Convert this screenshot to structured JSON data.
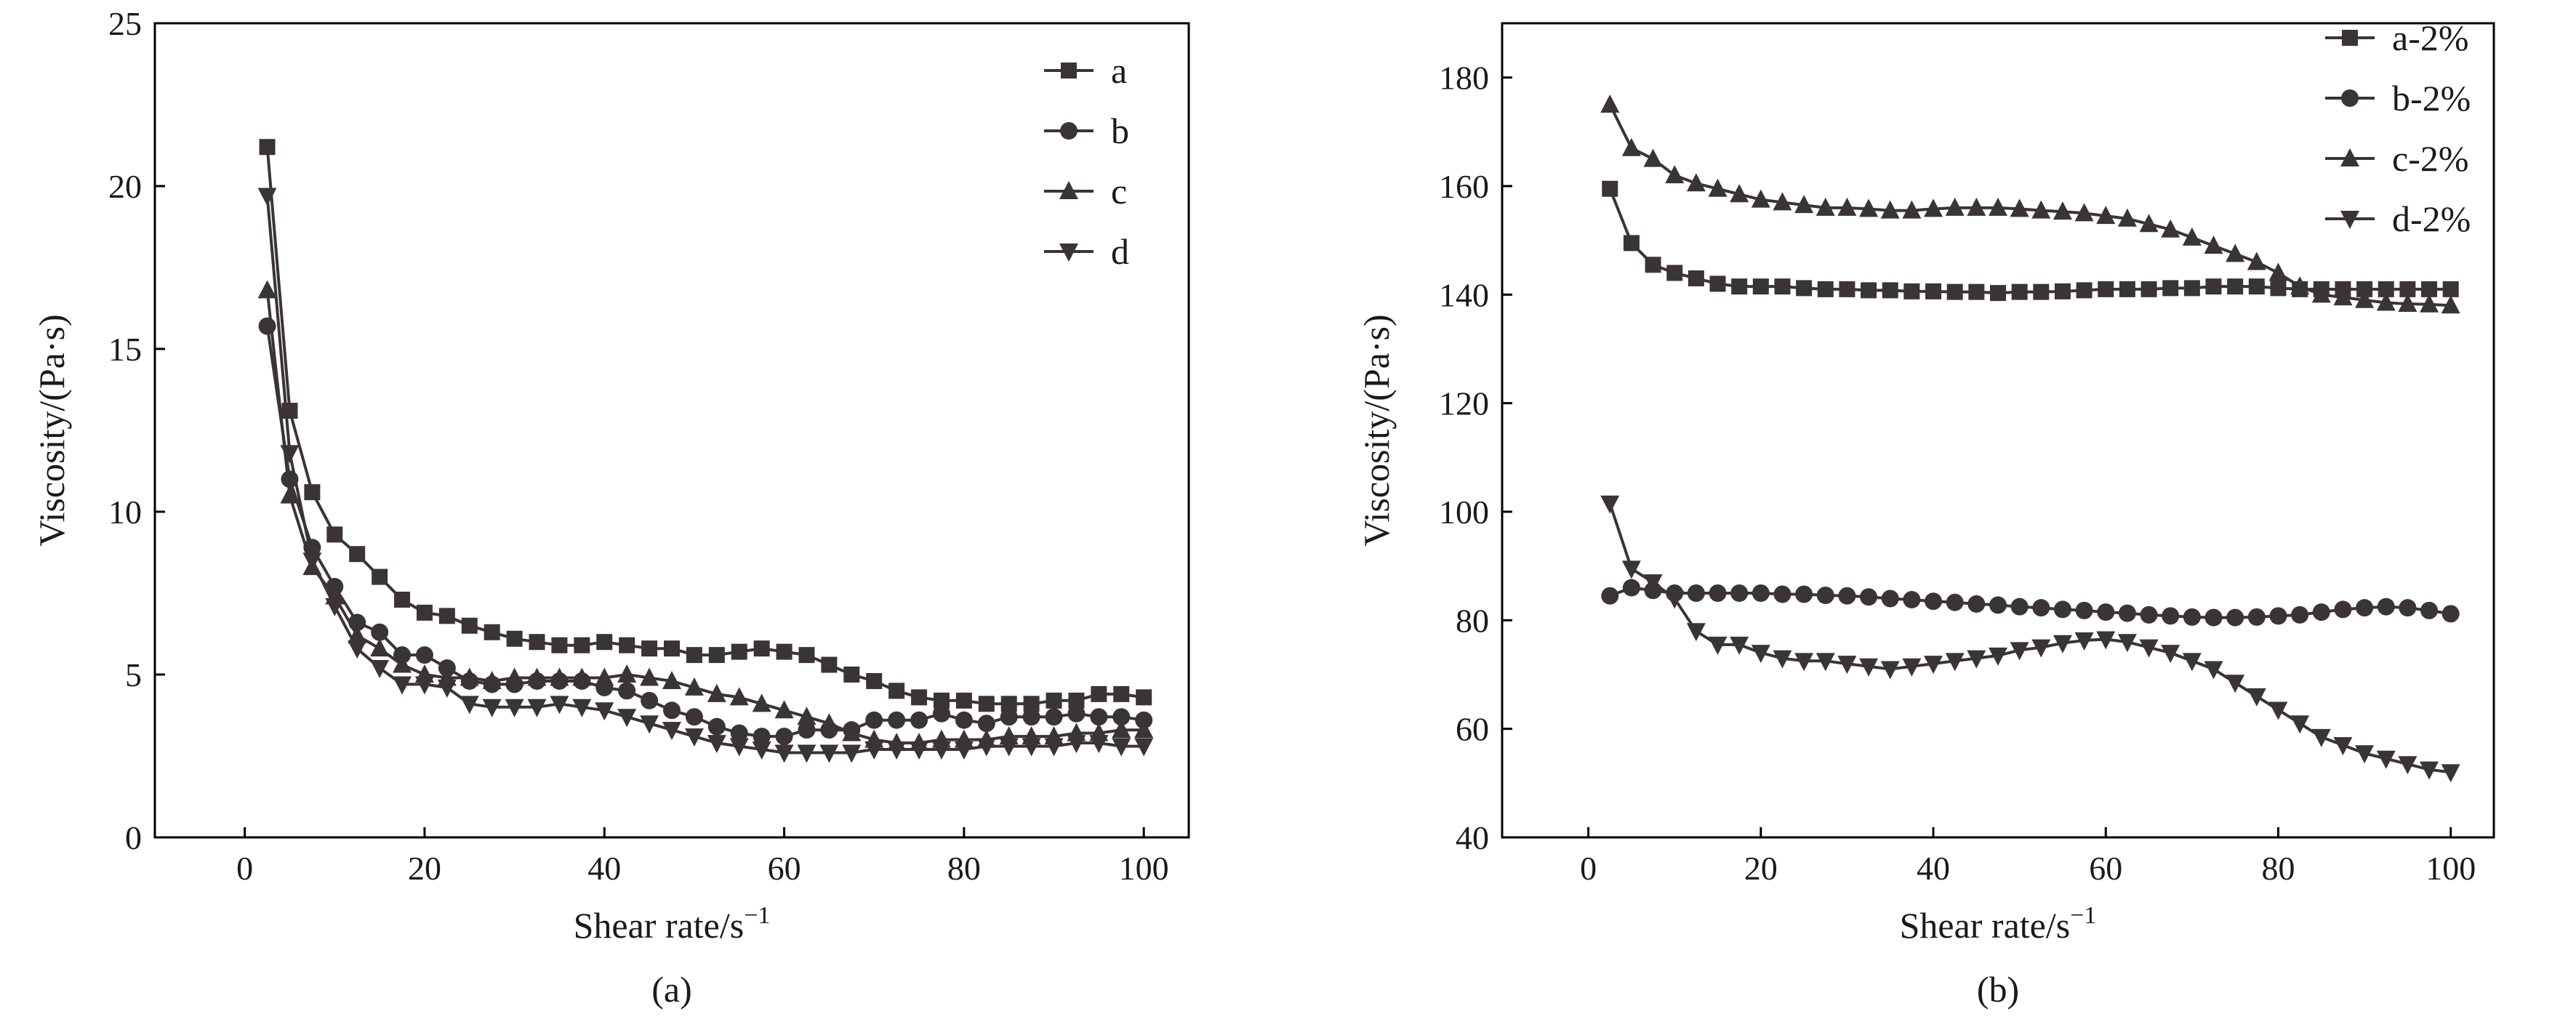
{
  "chart_data": [
    {
      "type": "line",
      "panel_label": "(a)",
      "title": "",
      "xlabel": "Shear rate/s",
      "xlabel_sup": "−1",
      "ylabel": "Viscosity/(Pa·s)",
      "xlim": [
        -10,
        105
      ],
      "ylim": [
        0,
        25
      ],
      "xticks": [
        0,
        20,
        40,
        60,
        80,
        100
      ],
      "yticks": [
        0,
        5,
        10,
        15,
        20,
        25
      ],
      "legend_position": "top-right",
      "color": "#3b3434",
      "series": [
        {
          "name": "a",
          "marker": "square",
          "x": [
            2.5,
            5,
            7.5,
            10,
            12.5,
            15,
            17.5,
            20,
            22.5,
            25,
            27.5,
            30,
            32.5,
            35,
            37.5,
            40,
            42.5,
            45,
            47.5,
            50,
            52.5,
            55,
            57.5,
            60,
            62.5,
            65,
            67.5,
            70,
            72.5,
            75,
            77.5,
            80,
            82.5,
            85,
            87.5,
            90,
            92.5,
            95,
            97.5,
            100
          ],
          "y": [
            21.2,
            13.1,
            10.6,
            9.3,
            8.7,
            8.0,
            7.3,
            6.9,
            6.8,
            6.5,
            6.3,
            6.1,
            6.0,
            5.9,
            5.9,
            6.0,
            5.9,
            5.8,
            5.8,
            5.6,
            5.6,
            5.7,
            5.8,
            5.7,
            5.6,
            5.3,
            5.0,
            4.8,
            4.5,
            4.3,
            4.2,
            4.2,
            4.1,
            4.1,
            4.1,
            4.2,
            4.2,
            4.4,
            4.4,
            4.3
          ]
        },
        {
          "name": "b",
          "marker": "circle",
          "x": [
            2.5,
            5,
            7.5,
            10,
            12.5,
            15,
            17.5,
            20,
            22.5,
            25,
            27.5,
            30,
            32.5,
            35,
            37.5,
            40,
            42.5,
            45,
            47.5,
            50,
            52.5,
            55,
            57.5,
            60,
            62.5,
            65,
            67.5,
            70,
            72.5,
            75,
            77.5,
            80,
            82.5,
            85,
            87.5,
            90,
            92.5,
            95,
            97.5,
            100
          ],
          "y": [
            15.7,
            11.0,
            8.9,
            7.7,
            6.6,
            6.3,
            5.6,
            5.6,
            5.2,
            4.8,
            4.7,
            4.7,
            4.8,
            4.8,
            4.8,
            4.6,
            4.5,
            4.2,
            3.9,
            3.7,
            3.4,
            3.2,
            3.1,
            3.1,
            3.3,
            3.3,
            3.3,
            3.6,
            3.6,
            3.6,
            3.8,
            3.6,
            3.5,
            3.7,
            3.7,
            3.7,
            3.8,
            3.7,
            3.7,
            3.6
          ]
        },
        {
          "name": "c",
          "marker": "triangle-up",
          "x": [
            2.5,
            5,
            7.5,
            10,
            12.5,
            15,
            17.5,
            20,
            22.5,
            25,
            27.5,
            30,
            32.5,
            35,
            37.5,
            40,
            42.5,
            45,
            47.5,
            50,
            52.5,
            55,
            57.5,
            60,
            62.5,
            65,
            67.5,
            70,
            72.5,
            75,
            77.5,
            80,
            82.5,
            85,
            87.5,
            90,
            92.5,
            95,
            97.5,
            100
          ],
          "y": [
            16.8,
            10.5,
            8.3,
            7.4,
            6.2,
            5.8,
            5.3,
            5.0,
            4.9,
            4.9,
            4.8,
            4.9,
            4.9,
            4.9,
            4.9,
            4.9,
            5.0,
            4.9,
            4.8,
            4.6,
            4.4,
            4.3,
            4.1,
            3.9,
            3.7,
            3.5,
            3.2,
            3.0,
            2.9,
            2.9,
            3.0,
            3.0,
            3.0,
            3.1,
            3.1,
            3.1,
            3.2,
            3.2,
            3.3,
            3.3
          ]
        },
        {
          "name": "d",
          "marker": "triangle-down",
          "x": [
            2.5,
            5,
            7.5,
            10,
            12.5,
            15,
            17.5,
            20,
            22.5,
            25,
            27.5,
            30,
            32.5,
            35,
            37.5,
            40,
            42.5,
            45,
            47.5,
            50,
            52.5,
            55,
            57.5,
            60,
            62.5,
            65,
            67.5,
            70,
            72.5,
            75,
            77.5,
            80,
            82.5,
            85,
            87.5,
            90,
            92.5,
            95,
            97.5,
            100
          ],
          "y": [
            19.7,
            11.8,
            8.5,
            7.1,
            5.8,
            5.2,
            4.7,
            4.7,
            4.6,
            4.1,
            4.0,
            4.0,
            4.0,
            4.1,
            4.0,
            3.9,
            3.7,
            3.5,
            3.3,
            3.1,
            2.9,
            2.8,
            2.7,
            2.6,
            2.6,
            2.6,
            2.6,
            2.7,
            2.7,
            2.7,
            2.7,
            2.7,
            2.8,
            2.8,
            2.8,
            2.8,
            2.9,
            2.9,
            2.8,
            2.8
          ]
        }
      ]
    },
    {
      "type": "line",
      "panel_label": "(b)",
      "title": "",
      "xlabel": "Shear rate/s",
      "xlabel_sup": "−1",
      "ylabel": "Viscosity/(Pa·s)",
      "xlim": [
        -10,
        105
      ],
      "ylim": [
        40,
        190
      ],
      "xticks": [
        0,
        20,
        40,
        60,
        80,
        100
      ],
      "yticks": [
        40,
        60,
        80,
        100,
        120,
        140,
        160,
        180
      ],
      "legend_position": "top-right",
      "color": "#3b3434",
      "series": [
        {
          "name": "a-2%",
          "marker": "square",
          "x": [
            2.5,
            5,
            7.5,
            10,
            12.5,
            15,
            17.5,
            20,
            22.5,
            25,
            27.5,
            30,
            32.5,
            35,
            37.5,
            40,
            42.5,
            45,
            47.5,
            50,
            52.5,
            55,
            57.5,
            60,
            62.5,
            65,
            67.5,
            70,
            72.5,
            75,
            77.5,
            80,
            82.5,
            85,
            87.5,
            90,
            92.5,
            95,
            97.5,
            100
          ],
          "y": [
            159.5,
            149.5,
            145.5,
            144,
            143,
            142,
            141.5,
            141.5,
            141.5,
            141.2,
            141,
            141,
            140.8,
            140.8,
            140.6,
            140.6,
            140.5,
            140.5,
            140.3,
            140.5,
            140.5,
            140.6,
            140.8,
            141,
            141,
            141,
            141.2,
            141.2,
            141.5,
            141.5,
            141.5,
            141.2,
            141,
            141,
            141,
            141,
            141,
            141,
            141,
            141
          ]
        },
        {
          "name": "b-2%",
          "marker": "circle",
          "x": [
            2.5,
            5,
            7.5,
            10,
            12.5,
            15,
            17.5,
            20,
            22.5,
            25,
            27.5,
            30,
            32.5,
            35,
            37.5,
            40,
            42.5,
            45,
            47.5,
            50,
            52.5,
            55,
            57.5,
            60,
            62.5,
            65,
            67.5,
            70,
            72.5,
            75,
            77.5,
            80,
            82.5,
            85,
            87.5,
            90,
            92.5,
            95,
            97.5,
            100
          ],
          "y": [
            84.5,
            86,
            85.5,
            85,
            85,
            85,
            85,
            85,
            84.8,
            84.8,
            84.6,
            84.5,
            84.3,
            84,
            83.8,
            83.5,
            83.3,
            83,
            82.8,
            82.5,
            82.3,
            82,
            81.8,
            81.5,
            81.3,
            81,
            80.8,
            80.6,
            80.5,
            80.5,
            80.6,
            80.8,
            81,
            81.5,
            82,
            82.3,
            82.5,
            82.3,
            81.8,
            81.2
          ]
        },
        {
          "name": "c-2%",
          "marker": "triangle-up",
          "x": [
            2.5,
            5,
            7.5,
            10,
            12.5,
            15,
            17.5,
            20,
            22.5,
            25,
            27.5,
            30,
            32.5,
            35,
            37.5,
            40,
            42.5,
            45,
            47.5,
            50,
            52.5,
            55,
            57.5,
            60,
            62.5,
            65,
            67.5,
            70,
            72.5,
            75,
            77.5,
            80,
            82.5,
            85,
            87.5,
            90,
            92.5,
            95,
            97.5,
            100
          ],
          "y": [
            175,
            167,
            165,
            162,
            160.5,
            159.5,
            158.5,
            157.5,
            157,
            156.5,
            156,
            156,
            155.8,
            155.5,
            155.5,
            155.8,
            156,
            156,
            156,
            155.8,
            155.5,
            155.3,
            155,
            154.5,
            154,
            153,
            152,
            150.5,
            149,
            147.5,
            146,
            144,
            141.5,
            140,
            139.5,
            139,
            138.5,
            138.3,
            138.2,
            138
          ]
        },
        {
          "name": "d-2%",
          "marker": "triangle-down",
          "x": [
            2.5,
            5,
            7.5,
            10,
            12.5,
            15,
            17.5,
            20,
            22.5,
            25,
            27.5,
            30,
            32.5,
            35,
            37.5,
            40,
            42.5,
            45,
            47.5,
            50,
            52.5,
            55,
            57.5,
            60,
            62.5,
            65,
            67.5,
            70,
            72.5,
            75,
            77.5,
            80,
            82.5,
            85,
            87.5,
            90,
            92.5,
            95,
            97.5,
            100
          ],
          "y": [
            101.5,
            89.5,
            87,
            84,
            78,
            75.5,
            75.5,
            74,
            73,
            72.5,
            72.5,
            72,
            71.5,
            71,
            71.5,
            72,
            72.5,
            73,
            73.5,
            74.5,
            75,
            75.8,
            76.3,
            76.5,
            76,
            75,
            74,
            72.5,
            71,
            68.5,
            66,
            63.5,
            61,
            58.5,
            57,
            55.5,
            54.5,
            53.5,
            52.5,
            52
          ]
        }
      ]
    }
  ]
}
